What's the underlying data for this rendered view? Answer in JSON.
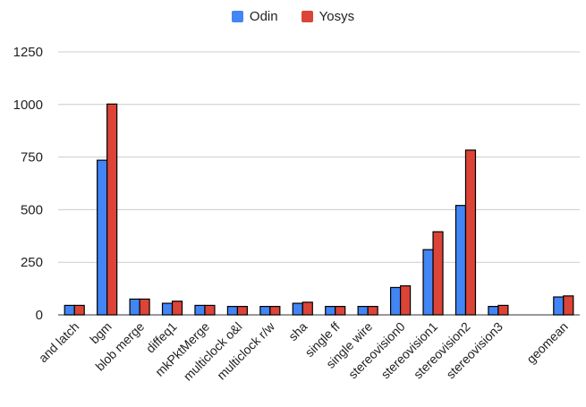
{
  "chart_data": {
    "type": "bar",
    "title": "",
    "xlabel": "",
    "ylabel": "",
    "ylim": [
      0,
      1250
    ],
    "yticks": [
      0,
      250,
      500,
      750,
      1000,
      1250
    ],
    "grid": "horizontal",
    "legend_position": "top-center",
    "categories": [
      "and latch",
      "bgm",
      "blob merge",
      "diffeq1",
      "mkPktMerge",
      "multiclock o&l",
      "multiclock r/w",
      "sha",
      "single ff",
      "single wire",
      "stereovision0",
      "stereovision1",
      "stereovision2",
      "stereovision3",
      "",
      "geomean"
    ],
    "series": [
      {
        "name": "Odin",
        "color": "#4285f4",
        "values": [
          45,
          735,
          75,
          55,
          45,
          40,
          40,
          55,
          40,
          40,
          130,
          310,
          520,
          40,
          null,
          85
        ]
      },
      {
        "name": "Yosys",
        "color": "#db4437",
        "values": [
          45,
          1002,
          75,
          65,
          45,
          40,
          40,
          60,
          40,
          40,
          138,
          395,
          783,
          45,
          null,
          90
        ]
      }
    ]
  }
}
